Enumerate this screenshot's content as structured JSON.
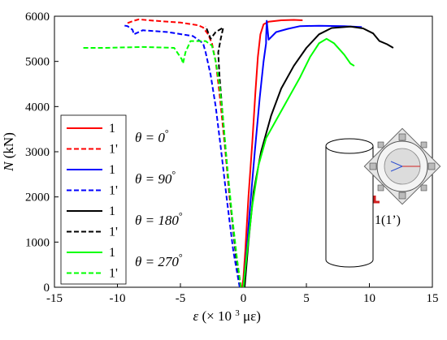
{
  "chart_data": {
    "type": "line",
    "xlabel_main": "ε",
    "xlabel_rest": "(× 10",
    "xlabel_sup": "3",
    "xlabel_unit": " με)",
    "ylabel_main": "N",
    "ylabel_unit": " (kN)",
    "xlim": [
      -15,
      15
    ],
    "ylim": [
      0,
      6000
    ],
    "xticks": [
      -15,
      -10,
      -5,
      0,
      5,
      10,
      15
    ],
    "yticks": [
      0,
      1000,
      2000,
      3000,
      4000,
      5000,
      6000
    ],
    "legend_position": "left",
    "groups": [
      {
        "theta_label": "θ = 0",
        "theta_sup": "°",
        "color": "#ff0000"
      },
      {
        "theta_label": "θ = 90",
        "theta_sup": "°",
        "color": "#0000ff"
      },
      {
        "theta_label": "θ = 180",
        "theta_sup": "°",
        "color": "#000000"
      },
      {
        "theta_label": "θ = 270",
        "theta_sup": "°",
        "color": "#00ff00"
      }
    ],
    "series": [
      {
        "name": "1",
        "group": 0,
        "dash": false,
        "color": "#ff0000",
        "points": [
          [
            -0.1,
            0
          ],
          [
            0.0,
            200
          ],
          [
            0.15,
            800
          ],
          [
            0.4,
            2000
          ],
          [
            0.7,
            3200
          ],
          [
            0.95,
            4300
          ],
          [
            1.15,
            5100
          ],
          [
            1.35,
            5600
          ],
          [
            1.6,
            5820
          ],
          [
            2.0,
            5880
          ],
          [
            3.0,
            5910
          ],
          [
            4.0,
            5920
          ],
          [
            4.7,
            5910
          ]
        ]
      },
      {
        "name": "1'",
        "group": 0,
        "dash": true,
        "color": "#ff0000",
        "points": [
          [
            -0.2,
            0
          ],
          [
            -0.6,
            800
          ],
          [
            -1.1,
            2000
          ],
          [
            -1.5,
            3200
          ],
          [
            -1.9,
            4300
          ],
          [
            -2.2,
            5000
          ],
          [
            -2.5,
            5400
          ],
          [
            -2.8,
            5600
          ],
          [
            -3.2,
            5750
          ],
          [
            -3.6,
            5800
          ],
          [
            -5,
            5860
          ],
          [
            -7,
            5900
          ],
          [
            -8.3,
            5930
          ],
          [
            -8.7,
            5900
          ],
          [
            -9.2,
            5850
          ]
        ]
      },
      {
        "name": "1",
        "group": 1,
        "dash": false,
        "color": "#0000ff",
        "points": [
          [
            0.0,
            0
          ],
          [
            0.2,
            600
          ],
          [
            0.5,
            1700
          ],
          [
            0.9,
            3000
          ],
          [
            1.3,
            4200
          ],
          [
            1.6,
            5000
          ],
          [
            1.8,
            5400
          ],
          [
            1.8,
            5500
          ],
          [
            1.85,
            5900
          ],
          [
            2.0,
            5480
          ],
          [
            2.6,
            5650
          ],
          [
            3.5,
            5720
          ],
          [
            4.5,
            5780
          ],
          [
            6,
            5790
          ],
          [
            8,
            5780
          ],
          [
            9.4,
            5760
          ]
        ]
      },
      {
        "name": "1'",
        "group": 1,
        "dash": true,
        "color": "#0000ff",
        "points": [
          [
            -0.3,
            0
          ],
          [
            -0.8,
            800
          ],
          [
            -1.3,
            1900
          ],
          [
            -1.8,
            3100
          ],
          [
            -2.2,
            4000
          ],
          [
            -2.6,
            4700
          ],
          [
            -3.0,
            5200
          ],
          [
            -3.2,
            5400
          ],
          [
            -4.0,
            5560
          ],
          [
            -6,
            5650
          ],
          [
            -8,
            5690
          ],
          [
            -8.7,
            5600
          ],
          [
            -8.8,
            5700
          ],
          [
            -9.2,
            5780
          ],
          [
            -9.6,
            5800
          ]
        ]
      },
      {
        "name": "1",
        "group": 2,
        "dash": false,
        "color": "#000000",
        "points": [
          [
            0.1,
            0
          ],
          [
            0.4,
            1000
          ],
          [
            0.8,
            2100
          ],
          [
            1.4,
            3000
          ],
          [
            2.2,
            3800
          ],
          [
            3.0,
            4400
          ],
          [
            4.0,
            4900
          ],
          [
            5.0,
            5300
          ],
          [
            6.0,
            5600
          ],
          [
            7.0,
            5740
          ],
          [
            8.5,
            5770
          ],
          [
            9.5,
            5730
          ],
          [
            10.3,
            5620
          ],
          [
            10.8,
            5450
          ],
          [
            11.4,
            5380
          ],
          [
            11.9,
            5300
          ]
        ]
      },
      {
        "name": "1'",
        "group": 2,
        "dash": true,
        "color": "#000000",
        "points": [
          [
            -0.2,
            0
          ],
          [
            -0.6,
            700
          ],
          [
            -1.0,
            1800
          ],
          [
            -1.4,
            3000
          ],
          [
            -1.7,
            4000
          ],
          [
            -1.9,
            4700
          ],
          [
            -2.0,
            5200
          ],
          [
            -1.8,
            5500
          ],
          [
            -1.6,
            5750
          ],
          [
            -2.2,
            5650
          ],
          [
            -2.6,
            5500
          ],
          [
            -3.0,
            5780
          ]
        ]
      },
      {
        "name": "1",
        "group": 3,
        "dash": false,
        "color": "#00ff00",
        "points": [
          [
            0.0,
            0
          ],
          [
            0.3,
            800
          ],
          [
            0.7,
            1800
          ],
          [
            1.2,
            2700
          ],
          [
            1.8,
            3300
          ],
          [
            2.6,
            3700
          ],
          [
            3.6,
            4200
          ],
          [
            4.5,
            4650
          ],
          [
            5.3,
            5100
          ],
          [
            6.0,
            5400
          ],
          [
            6.6,
            5500
          ],
          [
            7.2,
            5400
          ],
          [
            8.0,
            5150
          ],
          [
            8.5,
            4950
          ],
          [
            8.8,
            4900
          ]
        ]
      },
      {
        "name": "1'",
        "group": 3,
        "dash": true,
        "color": "#00ff00",
        "points": [
          [
            -0.2,
            0
          ],
          [
            -0.5,
            600
          ],
          [
            -0.9,
            1600
          ],
          [
            -1.3,
            2700
          ],
          [
            -1.6,
            3700
          ],
          [
            -1.9,
            4500
          ],
          [
            -2.2,
            5000
          ],
          [
            -2.5,
            5350
          ],
          [
            -3.0,
            5450
          ],
          [
            -4.2,
            5450
          ],
          [
            -4.6,
            5200
          ],
          [
            -4.8,
            4950
          ],
          [
            -4.9,
            5050
          ],
          [
            -5.5,
            5300
          ],
          [
            -8,
            5320
          ],
          [
            -11,
            5300
          ],
          [
            -12.8,
            5300
          ]
        ]
      }
    ],
    "annotation_label": "1(1’)"
  }
}
